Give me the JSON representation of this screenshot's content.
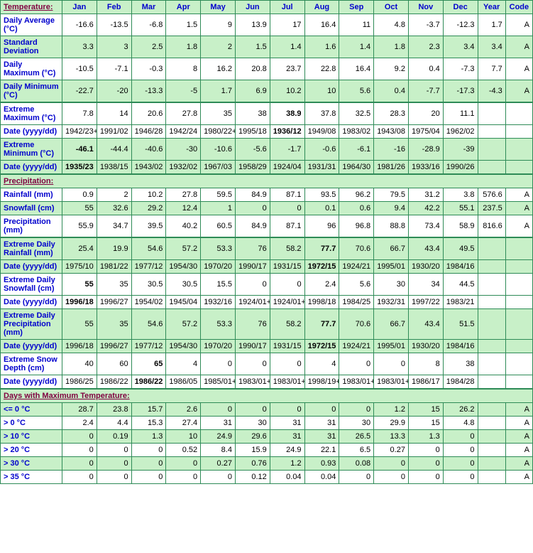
{
  "header": {
    "section_temp": "Temperature:",
    "section_precip": "Precipitation:",
    "section_days": "Days with Maximum Temperature:",
    "months": [
      "Jan",
      "Feb",
      "Mar",
      "Apr",
      "May",
      "Jun",
      "Jul",
      "Aug",
      "Sep",
      "Oct",
      "Nov",
      "Dec"
    ],
    "year": "Year",
    "code": "Code"
  },
  "rows": [
    {
      "label": "Daily Average (°C)",
      "band": "odd",
      "vals": [
        "-16.6",
        "-13.5",
        "-6.8",
        "1.5",
        "9",
        "13.9",
        "17",
        "16.4",
        "11",
        "4.8",
        "-3.7",
        "-12.3",
        "1.7",
        "A"
      ]
    },
    {
      "label": "Standard Deviation",
      "band": "even",
      "vals": [
        "3.3",
        "3",
        "2.5",
        "1.8",
        "2",
        "1.5",
        "1.4",
        "1.6",
        "1.4",
        "1.8",
        "2.3",
        "3.4",
        "3.4",
        "A"
      ]
    },
    {
      "label": "Daily Maximum (°C)",
      "band": "odd",
      "vals": [
        "-10.5",
        "-7.1",
        "-0.3",
        "8",
        "16.2",
        "20.8",
        "23.7",
        "22.8",
        "16.4",
        "9.2",
        "0.4",
        "-7.3",
        "7.7",
        "A"
      ]
    },
    {
      "label": "Daily Minimum (°C)",
      "band": "even",
      "thickBottom": true,
      "vals": [
        "-22.7",
        "-20",
        "-13.3",
        "-5",
        "1.7",
        "6.9",
        "10.2",
        "10",
        "5.6",
        "0.4",
        "-7.7",
        "-17.3",
        "-4.3",
        "A"
      ]
    },
    {
      "label": "Extreme Maximum (°C)",
      "band": "odd",
      "vals": [
        "7.8",
        "14",
        "20.6",
        "27.8",
        "35",
        "38",
        "38.9",
        "37.8",
        "32.5",
        "28.3",
        "20",
        "11.1",
        "",
        ""
      ],
      "bold": [
        6
      ]
    },
    {
      "label": "Date (yyyy/dd)",
      "band": "odd",
      "vals": [
        "1942/23+",
        "1991/02",
        "1946/28",
        "1942/24",
        "1980/22+",
        "1995/18",
        "1936/12",
        "1949/08",
        "1983/02",
        "1943/08",
        "1975/04",
        "1962/02",
        "",
        ""
      ],
      "bold": [
        6
      ]
    },
    {
      "label": "Extreme Minimum (°C)",
      "band": "even",
      "vals": [
        "-46.1",
        "-44.4",
        "-40.6",
        "-30",
        "-10.6",
        "-5.6",
        "-1.7",
        "-0.6",
        "-6.1",
        "-16",
        "-28.9",
        "-39",
        "",
        ""
      ],
      "bold": [
        0
      ]
    },
    {
      "label": "Date (yyyy/dd)",
      "band": "even",
      "thickBottom": true,
      "vals": [
        "1935/23",
        "1938/15",
        "1943/02",
        "1932/02",
        "1967/03",
        "1958/29",
        "1924/04",
        "1931/31",
        "1964/30",
        "1981/26",
        "1933/16",
        "1990/26",
        "",
        ""
      ],
      "bold": [
        0
      ]
    },
    {
      "label": "Rainfall (mm)",
      "band": "odd",
      "vals": [
        "0.9",
        "2",
        "10.2",
        "27.8",
        "59.5",
        "84.9",
        "87.1",
        "93.5",
        "96.2",
        "79.5",
        "31.2",
        "3.8",
        "576.6",
        "A"
      ]
    },
    {
      "label": "Snowfall (cm)",
      "band": "even",
      "vals": [
        "55",
        "32.6",
        "29.2",
        "12.4",
        "1",
        "0",
        "0",
        "0.1",
        "0.6",
        "9.4",
        "42.2",
        "55.1",
        "237.5",
        "A"
      ]
    },
    {
      "label": "Precipitation (mm)",
      "band": "odd",
      "thickBottom": true,
      "vals": [
        "55.9",
        "34.7",
        "39.5",
        "40.2",
        "60.5",
        "84.9",
        "87.1",
        "96",
        "96.8",
        "88.8",
        "73.4",
        "58.9",
        "816.6",
        "A"
      ]
    },
    {
      "label": "Extreme Daily Rainfall (mm)",
      "band": "even",
      "vals": [
        "25.4",
        "19.9",
        "54.6",
        "57.2",
        "53.3",
        "76",
        "58.2",
        "77.7",
        "70.6",
        "66.7",
        "43.4",
        "49.5",
        "",
        ""
      ],
      "bold": [
        7
      ]
    },
    {
      "label": "Date (yyyy/dd)",
      "band": "even",
      "vals": [
        "1975/10",
        "1981/22",
        "1977/12",
        "1954/30",
        "1970/20",
        "1990/17",
        "1931/15",
        "1972/15",
        "1924/21",
        "1995/01",
        "1930/20",
        "1984/16",
        "",
        ""
      ],
      "bold": [
        7
      ]
    },
    {
      "label": "Extreme Daily Snowfall (cm)",
      "band": "odd",
      "vals": [
        "55",
        "35",
        "30.5",
        "30.5",
        "15.5",
        "0",
        "0",
        "2.4",
        "5.6",
        "30",
        "34",
        "44.5",
        "",
        ""
      ],
      "bold": [
        0
      ]
    },
    {
      "label": "Date (yyyy/dd)",
      "band": "odd",
      "vals": [
        "1996/18",
        "1996/27",
        "1954/02",
        "1945/04",
        "1932/16",
        "1924/01+",
        "1924/01+",
        "1998/18",
        "1984/25",
        "1932/31",
        "1997/22",
        "1983/21",
        "",
        ""
      ],
      "bold": [
        0
      ]
    },
    {
      "label": "Extreme Daily Precipitation (mm)",
      "band": "even",
      "vals": [
        "55",
        "35",
        "54.6",
        "57.2",
        "53.3",
        "76",
        "58.2",
        "77.7",
        "70.6",
        "66.7",
        "43.4",
        "51.5",
        "",
        ""
      ],
      "bold": [
        7
      ]
    },
    {
      "label": "Date (yyyy/dd)",
      "band": "even",
      "vals": [
        "1996/18",
        "1996/27",
        "1977/12",
        "1954/30",
        "1970/20",
        "1990/17",
        "1931/15",
        "1972/15",
        "1924/21",
        "1995/01",
        "1930/20",
        "1984/16",
        "",
        ""
      ],
      "bold": [
        7
      ]
    },
    {
      "label": "Extreme Snow Depth (cm)",
      "band": "odd",
      "vals": [
        "40",
        "60",
        "65",
        "4",
        "0",
        "0",
        "0",
        "4",
        "0",
        "0",
        "8",
        "38",
        "",
        ""
      ],
      "bold": [
        2
      ]
    },
    {
      "label": "Date (yyyy/dd)",
      "band": "odd",
      "thickBottom": true,
      "vals": [
        "1986/25",
        "1986/22",
        "1986/22",
        "1986/05",
        "1985/01+",
        "1983/01+",
        "1983/01+",
        "1998/19+",
        "1983/01+",
        "1983/01+",
        "1986/17",
        "1984/28",
        "",
        ""
      ],
      "bold": [
        2
      ]
    },
    {
      "label": "<= 0 °C",
      "band": "even",
      "vals": [
        "28.7",
        "23.8",
        "15.7",
        "2.6",
        "0",
        "0",
        "0",
        "0",
        "0",
        "1.2",
        "15",
        "26.2",
        "",
        "A"
      ]
    },
    {
      "label": "> 0 °C",
      "band": "odd",
      "vals": [
        "2.4",
        "4.4",
        "15.3",
        "27.4",
        "31",
        "30",
        "31",
        "31",
        "30",
        "29.9",
        "15",
        "4.8",
        "",
        "A"
      ]
    },
    {
      "label": "> 10 °C",
      "band": "even",
      "vals": [
        "0",
        "0.19",
        "1.3",
        "10",
        "24.9",
        "29.6",
        "31",
        "31",
        "26.5",
        "13.3",
        "1.3",
        "0",
        "",
        "A"
      ]
    },
    {
      "label": "> 20 °C",
      "band": "odd",
      "vals": [
        "0",
        "0",
        "0",
        "0.52",
        "8.4",
        "15.9",
        "24.9",
        "22.1",
        "6.5",
        "0.27",
        "0",
        "0",
        "",
        "A"
      ]
    },
    {
      "label": "> 30 °C",
      "band": "even",
      "vals": [
        "0",
        "0",
        "0",
        "0",
        "0.27",
        "0.76",
        "1.2",
        "0.93",
        "0.08",
        "0",
        "0",
        "0",
        "",
        "A"
      ]
    },
    {
      "label": "> 35 °C",
      "band": "odd",
      "vals": [
        "0",
        "0",
        "0",
        "0",
        "0",
        "0.12",
        "0.04",
        "0.04",
        "0",
        "0",
        "0",
        "0",
        "",
        "A"
      ]
    }
  ],
  "style": {
    "green_bg": "#c8f0c8",
    "border": "#2e8b57",
    "link_blue": "#0000cd",
    "section_purple": "#800040"
  }
}
